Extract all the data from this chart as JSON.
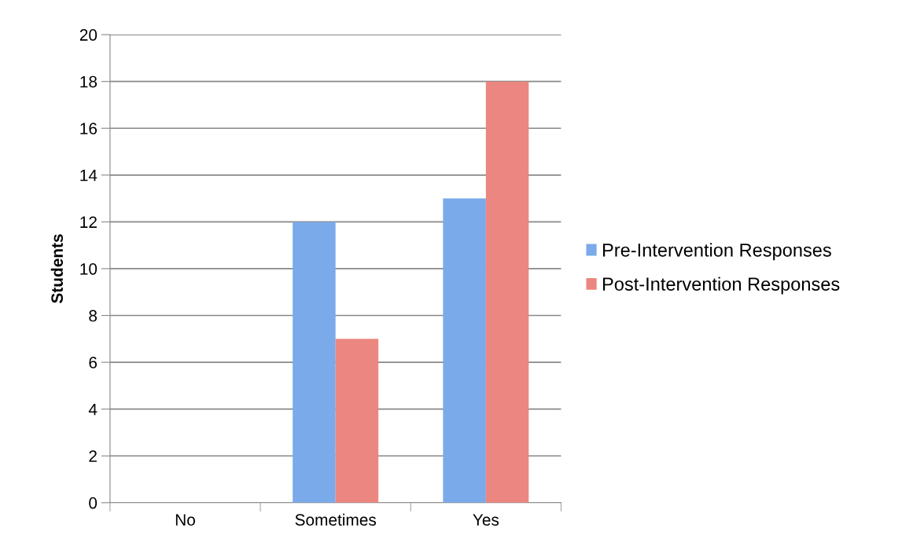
{
  "chart_data": {
    "type": "bar",
    "ylabel": "Students",
    "categories": [
      "No",
      "Sometimes",
      "Yes"
    ],
    "series": [
      {
        "name": "Pre-Intervention Responses",
        "color": "#7aaaea",
        "values": [
          0,
          12,
          13
        ]
      },
      {
        "name": "Post-Intervention Responses",
        "color": "#ec8680",
        "values": [
          0,
          7,
          18
        ]
      }
    ],
    "ylim": [
      0,
      20
    ],
    "yticks": [
      0,
      2,
      4,
      6,
      8,
      10,
      12,
      14,
      16,
      18,
      20
    ],
    "grid": "y",
    "legend": "right"
  }
}
